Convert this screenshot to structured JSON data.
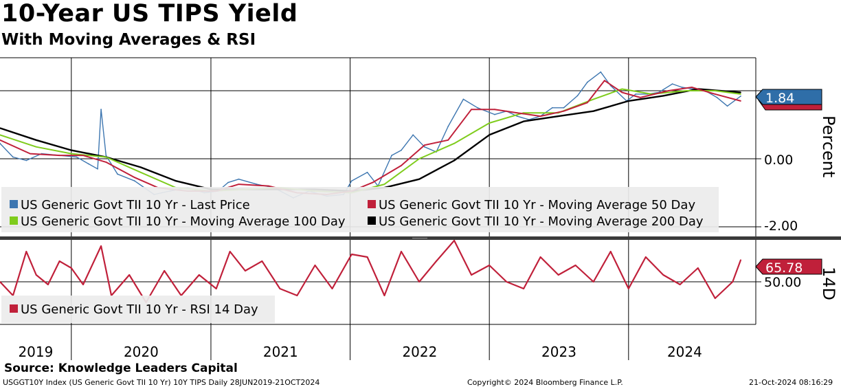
{
  "header": {
    "title": "10-Year US TIPS Yield",
    "subtitle": "With Moving Averages & RSI"
  },
  "footer": {
    "source": "Source: Knowledge Leaders Capital",
    "left": "USGGT10Y Index (US Generic Govt TII 10 Yr) 10Y TIPS  Daily 28JUN2019-21OCT2024",
    "center": "Copyright© 2024 Bloomberg Finance L.P.",
    "right": "21-Oct-2024 08:16:29"
  },
  "colors": {
    "last_price": "#3d76b0",
    "ma50": "#c0203a",
    "ma100": "#7fcc1c",
    "ma200": "#000000",
    "rsi": "#c0203a",
    "legend_bg": "#ececec"
  },
  "chart_data": [
    {
      "type": "line",
      "panel": "price",
      "ylabel": "Percent",
      "ylim": [
        -2.0,
        2.6
      ],
      "yticks": [
        "0.00",
        "-2.00"
      ],
      "xticks": [
        "2019",
        "2020",
        "2021",
        "2022",
        "2023",
        "2024"
      ],
      "x_range": [
        "2019-06-28",
        "2024-10-21"
      ],
      "last_value_labels": [
        "1.84"
      ],
      "series": [
        {
          "name": "US Generic Govt TII 10 Yr - Last Price",
          "color_key": "last_price",
          "x": [
            "2019-06-28",
            "2019-08-01",
            "2019-09-05",
            "2019-10-15",
            "2019-12-01",
            "2020-01-15",
            "2020-02-15",
            "2020-03-10",
            "2020-03-19",
            "2020-04-01",
            "2020-05-01",
            "2020-06-15",
            "2020-08-05",
            "2020-09-15",
            "2020-11-01",
            "2020-12-15",
            "2021-01-20",
            "2021-02-15",
            "2021-03-15",
            "2021-05-01",
            "2021-06-15",
            "2021-08-05",
            "2021-09-15",
            "2021-11-01",
            "2021-12-15",
            "2022-01-05",
            "2022-02-15",
            "2022-03-15",
            "2022-04-20",
            "2022-05-15",
            "2022-06-15",
            "2022-07-15",
            "2022-08-15",
            "2022-09-15",
            "2022-10-25",
            "2022-12-01",
            "2023-01-15",
            "2023-02-15",
            "2023-03-15",
            "2023-04-15",
            "2023-05-15",
            "2023-06-15",
            "2023-07-15",
            "2023-08-20",
            "2023-09-15",
            "2023-10-20",
            "2023-11-15",
            "2023-12-27",
            "2024-01-20",
            "2024-02-20",
            "2024-03-20",
            "2024-04-25",
            "2024-05-20",
            "2024-06-20",
            "2024-07-20",
            "2024-08-20",
            "2024-09-16",
            "2024-10-21"
          ],
          "values": [
            0.45,
            0.05,
            -0.05,
            0.15,
            0.1,
            0.05,
            -0.15,
            -0.3,
            1.45,
            0.1,
            -0.45,
            -0.65,
            -1.05,
            -0.95,
            -0.85,
            -1.0,
            -0.95,
            -0.7,
            -0.6,
            -0.75,
            -0.85,
            -1.15,
            -0.95,
            -1.1,
            -1.05,
            -0.65,
            -0.4,
            -0.8,
            0.1,
            0.25,
            0.7,
            0.35,
            0.2,
            0.95,
            1.75,
            1.5,
            1.3,
            1.4,
            1.25,
            1.15,
            1.25,
            1.5,
            1.5,
            1.85,
            2.25,
            2.55,
            2.15,
            1.7,
            1.9,
            1.9,
            1.95,
            2.2,
            2.1,
            2.05,
            2.0,
            1.8,
            1.55,
            1.84
          ]
        },
        {
          "name": "US Generic Govt TII 10 Yr - Moving Average 50 Day",
          "color_key": "ma50",
          "x": [
            "2019-06-28",
            "2019-09-15",
            "2019-12-01",
            "2020-02-01",
            "2020-04-01",
            "2020-06-15",
            "2020-08-15",
            "2020-11-01",
            "2021-01-15",
            "2021-03-15",
            "2021-06-01",
            "2021-08-15",
            "2021-11-01",
            "2022-01-05",
            "2022-03-01",
            "2022-05-15",
            "2022-07-15",
            "2022-09-15",
            "2022-11-15",
            "2023-01-15",
            "2023-03-15",
            "2023-05-15",
            "2023-07-15",
            "2023-09-15",
            "2023-10-30",
            "2023-12-15",
            "2024-02-01",
            "2024-04-15",
            "2024-06-15",
            "2024-08-15",
            "2024-10-21"
          ],
          "values": [
            0.55,
            0.15,
            0.1,
            0.1,
            -0.1,
            -0.55,
            -0.85,
            -0.95,
            -0.95,
            -0.75,
            -0.8,
            -1.0,
            -1.05,
            -0.95,
            -0.7,
            -0.2,
            0.4,
            0.55,
            1.45,
            1.45,
            1.35,
            1.25,
            1.4,
            1.65,
            2.3,
            1.95,
            1.8,
            2.0,
            2.1,
            1.9,
            1.7
          ]
        },
        {
          "name": "US Generic Govt TII 10 Yr - Moving Average 100 Day",
          "color_key": "ma100",
          "x": [
            "2019-06-28",
            "2019-10-01",
            "2020-01-01",
            "2020-04-01",
            "2020-07-01",
            "2020-10-01",
            "2021-01-01",
            "2021-04-01",
            "2021-07-01",
            "2021-10-01",
            "2022-01-05",
            "2022-04-01",
            "2022-07-01",
            "2022-10-01",
            "2023-01-01",
            "2023-04-01",
            "2023-07-01",
            "2023-10-01",
            "2023-12-15",
            "2024-03-01",
            "2024-06-01",
            "2024-08-15",
            "2024-10-21"
          ],
          "values": [
            0.7,
            0.35,
            0.15,
            0.05,
            -0.4,
            -0.85,
            -0.95,
            -0.9,
            -0.85,
            -0.95,
            -1.0,
            -0.75,
            0.0,
            0.45,
            1.05,
            1.35,
            1.35,
            1.75,
            2.05,
            1.9,
            2.0,
            2.0,
            1.9
          ]
        },
        {
          "name": "US Generic Govt TII 10 Yr - Moving Average 200 Day",
          "color_key": "ma200",
          "x": [
            "2019-06-28",
            "2019-10-01",
            "2020-01-01",
            "2020-04-01",
            "2020-07-01",
            "2020-10-01",
            "2021-01-01",
            "2021-04-01",
            "2021-07-01",
            "2021-10-01",
            "2022-01-05",
            "2022-04-01",
            "2022-07-01",
            "2022-10-01",
            "2023-01-01",
            "2023-04-01",
            "2023-07-01",
            "2023-10-01",
            "2024-01-01",
            "2024-04-01",
            "2024-07-01",
            "2024-10-21"
          ],
          "values": [
            0.9,
            0.55,
            0.25,
            0.05,
            -0.25,
            -0.65,
            -0.9,
            -0.9,
            -0.9,
            -0.9,
            -0.95,
            -0.85,
            -0.6,
            -0.05,
            0.7,
            1.1,
            1.25,
            1.4,
            1.7,
            1.85,
            2.05,
            1.95
          ]
        }
      ]
    },
    {
      "type": "line",
      "panel": "rsi",
      "ylabel": "14D",
      "ylim": [
        25,
        85
      ],
      "yticks": [
        "50.00"
      ],
      "last_value_labels": [
        "65.78"
      ],
      "series": [
        {
          "name": "US Generic Govt TII 10 Yr - RSI 14 Day",
          "color_key": "rsi",
          "x": [
            "2019-06-28",
            "2019-08-01",
            "2019-09-05",
            "2019-10-01",
            "2019-11-01",
            "2019-12-01",
            "2020-01-01",
            "2020-02-01",
            "2020-03-19",
            "2020-04-15",
            "2020-06-01",
            "2020-07-15",
            "2020-09-01",
            "2020-10-15",
            "2020-12-01",
            "2021-01-15",
            "2021-02-20",
            "2021-04-01",
            "2021-05-15",
            "2021-07-01",
            "2021-08-15",
            "2021-10-01",
            "2021-11-15",
            "2022-01-05",
            "2022-02-15",
            "2022-04-01",
            "2022-05-15",
            "2022-07-01",
            "2022-08-15",
            "2022-10-01",
            "2022-11-15",
            "2023-01-01",
            "2023-02-15",
            "2023-04-01",
            "2023-05-15",
            "2023-07-01",
            "2023-08-15",
            "2023-10-01",
            "2023-11-15",
            "2024-01-01",
            "2024-02-15",
            "2024-04-01",
            "2024-05-15",
            "2024-07-01",
            "2024-08-15",
            "2024-09-30",
            "2024-10-21"
          ],
          "values": [
            50,
            40,
            72,
            55,
            48,
            65,
            60,
            48,
            76,
            40,
            55,
            35,
            58,
            40,
            55,
            45,
            72,
            58,
            65,
            45,
            40,
            62,
            45,
            70,
            68,
            40,
            72,
            50,
            65,
            80,
            55,
            62,
            50,
            45,
            68,
            55,
            62,
            50,
            72,
            45,
            68,
            55,
            48,
            60,
            38,
            50,
            65.78
          ]
        }
      ]
    }
  ]
}
